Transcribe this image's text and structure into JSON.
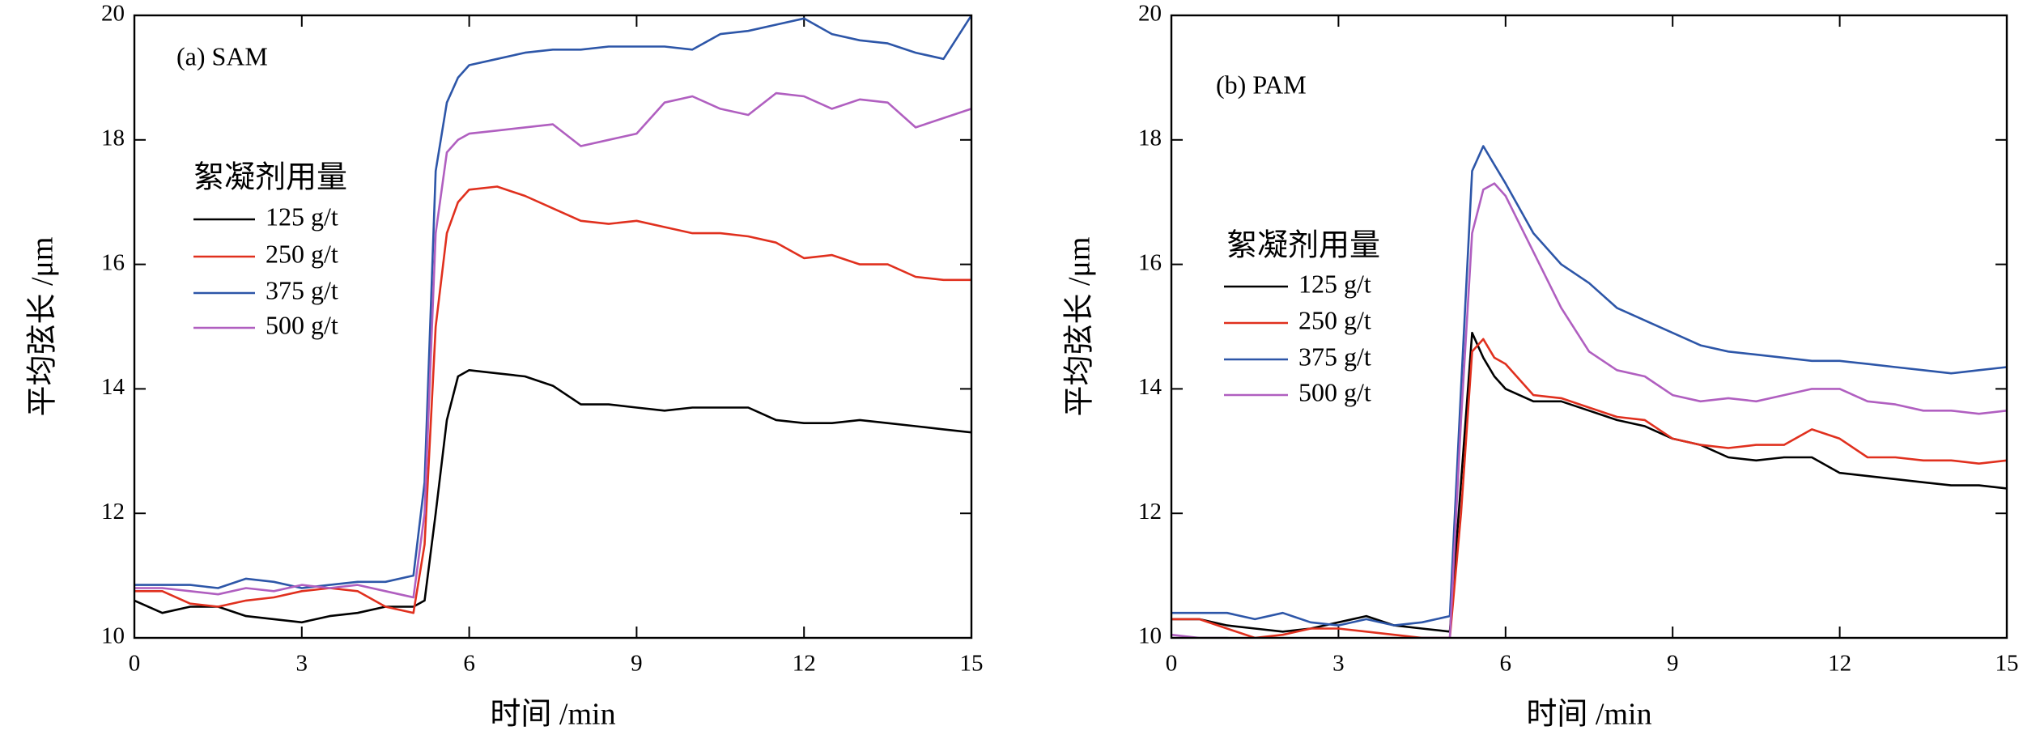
{
  "chart_data": [
    {
      "type": "line",
      "annotation": "(a) SAM",
      "x_label": "时间  /min",
      "y_label": "平均弦长  /μm",
      "legend_title": "絮凝剂用量",
      "x": [
        0,
        0.5,
        1,
        1.5,
        2,
        2.5,
        3,
        3.5,
        4,
        4.5,
        5,
        5.2,
        5.4,
        5.6,
        5.8,
        6,
        6.5,
        7,
        7.5,
        8,
        8.5,
        9,
        9.5,
        10,
        10.5,
        11,
        11.5,
        12,
        12.5,
        13,
        13.5,
        14,
        14.5,
        15
      ],
      "series": [
        {
          "name": "125 g/t",
          "color": "#000000",
          "values": [
            10.6,
            10.4,
            10.5,
            10.5,
            10.35,
            10.3,
            10.25,
            10.35,
            10.4,
            10.5,
            10.5,
            10.6,
            12.0,
            13.5,
            14.2,
            14.3,
            14.25,
            14.2,
            14.05,
            13.75,
            13.75,
            13.7,
            13.65,
            13.7,
            13.7,
            13.7,
            13.5,
            13.45,
            13.45,
            13.5,
            13.45,
            13.4,
            13.35,
            13.3
          ]
        },
        {
          "name": "250 g/t",
          "color": "#e0301e",
          "values": [
            10.75,
            10.75,
            10.55,
            10.5,
            10.6,
            10.65,
            10.75,
            10.8,
            10.75,
            10.5,
            10.4,
            11.5,
            15.0,
            16.5,
            17.0,
            17.2,
            17.25,
            17.1,
            16.9,
            16.7,
            16.65,
            16.7,
            16.6,
            16.5,
            16.5,
            16.45,
            16.35,
            16.1,
            16.15,
            16.0,
            16.0,
            15.8,
            15.75,
            15.75
          ]
        },
        {
          "name": "375 g/t",
          "color": "#2d56a8",
          "values": [
            10.85,
            10.85,
            10.85,
            10.8,
            10.95,
            10.9,
            10.8,
            10.85,
            10.9,
            10.9,
            11.0,
            12.5,
            17.5,
            18.6,
            19.0,
            19.2,
            19.3,
            19.4,
            19.45,
            19.45,
            19.5,
            19.5,
            19.5,
            19.45,
            19.7,
            19.75,
            19.85,
            19.95,
            19.7,
            19.6,
            19.55,
            19.4,
            19.3,
            20.0
          ]
        },
        {
          "name": "500 g/t",
          "color": "#b05fc0",
          "values": [
            10.8,
            10.8,
            10.75,
            10.7,
            10.8,
            10.75,
            10.85,
            10.8,
            10.85,
            10.75,
            10.65,
            12.0,
            16.5,
            17.8,
            18.0,
            18.1,
            18.15,
            18.2,
            18.25,
            17.9,
            18.0,
            18.1,
            18.6,
            18.7,
            18.5,
            18.4,
            18.75,
            18.7,
            18.5,
            18.65,
            18.6,
            18.2,
            18.35,
            18.5
          ]
        }
      ],
      "xlim": [
        0,
        15
      ],
      "ylim": [
        10,
        20
      ],
      "xticks": [
        0,
        3,
        6,
        9,
        12,
        15
      ],
      "yticks": [
        10,
        12,
        14,
        16,
        18,
        20
      ]
    },
    {
      "type": "line",
      "annotation": "(b) PAM",
      "x_label": "时间  /min",
      "y_label": "平均弦长  /μm",
      "legend_title": "絮凝剂用量",
      "x": [
        0,
        0.5,
        1,
        1.5,
        2,
        2.5,
        3,
        3.5,
        4,
        4.5,
        5,
        5.2,
        5.4,
        5.6,
        5.8,
        6,
        6.5,
        7,
        7.5,
        8,
        8.5,
        9,
        9.5,
        10,
        10.5,
        11,
        11.5,
        12,
        12.5,
        13,
        13.5,
        14,
        14.5,
        15
      ],
      "series": [
        {
          "name": "125 g/t",
          "color": "#000000",
          "values": [
            10.3,
            10.3,
            10.2,
            10.15,
            10.1,
            10.15,
            10.25,
            10.35,
            10.2,
            10.15,
            10.1,
            12.5,
            14.9,
            14.5,
            14.2,
            14.0,
            13.8,
            13.8,
            13.65,
            13.5,
            13.4,
            13.2,
            13.1,
            12.9,
            12.85,
            12.9,
            12.9,
            12.65,
            12.6,
            12.55,
            12.5,
            12.45,
            12.45,
            12.4
          ]
        },
        {
          "name": "250 g/t",
          "color": "#e0301e",
          "values": [
            10.3,
            10.3,
            10.15,
            10.0,
            10.05,
            10.15,
            10.15,
            10.1,
            10.05,
            10.0,
            10.0,
            12.0,
            14.6,
            14.8,
            14.5,
            14.4,
            13.9,
            13.85,
            13.7,
            13.55,
            13.5,
            13.2,
            13.1,
            13.05,
            13.1,
            13.1,
            13.35,
            13.2,
            12.9,
            12.9,
            12.85,
            12.85,
            12.8,
            12.85
          ]
        },
        {
          "name": "375 g/t",
          "color": "#2d56a8",
          "values": [
            10.4,
            10.4,
            10.4,
            10.3,
            10.4,
            10.25,
            10.2,
            10.3,
            10.2,
            10.25,
            10.35,
            14.0,
            17.5,
            17.9,
            17.6,
            17.3,
            16.5,
            16.0,
            15.7,
            15.3,
            15.1,
            14.9,
            14.7,
            14.6,
            14.55,
            14.5,
            14.45,
            14.45,
            14.4,
            14.35,
            14.3,
            14.25,
            14.3,
            14.35
          ]
        },
        {
          "name": "500 g/t",
          "color": "#b05fc0",
          "values": [
            10.05,
            10.0,
            10.0,
            9.95,
            9.9,
            9.95,
            10.0,
            9.95,
            9.9,
            10.0,
            10.0,
            13.5,
            16.5,
            17.2,
            17.3,
            17.1,
            16.2,
            15.3,
            14.6,
            14.3,
            14.2,
            13.9,
            13.8,
            13.85,
            13.8,
            13.9,
            14.0,
            14.0,
            13.8,
            13.75,
            13.65,
            13.65,
            13.6,
            13.65
          ]
        }
      ],
      "xlim": [
        0,
        15
      ],
      "ylim": [
        10,
        20
      ],
      "xticks": [
        0,
        3,
        6,
        9,
        12,
        15
      ],
      "yticks": [
        10,
        12,
        14,
        16,
        18,
        20
      ]
    }
  ]
}
